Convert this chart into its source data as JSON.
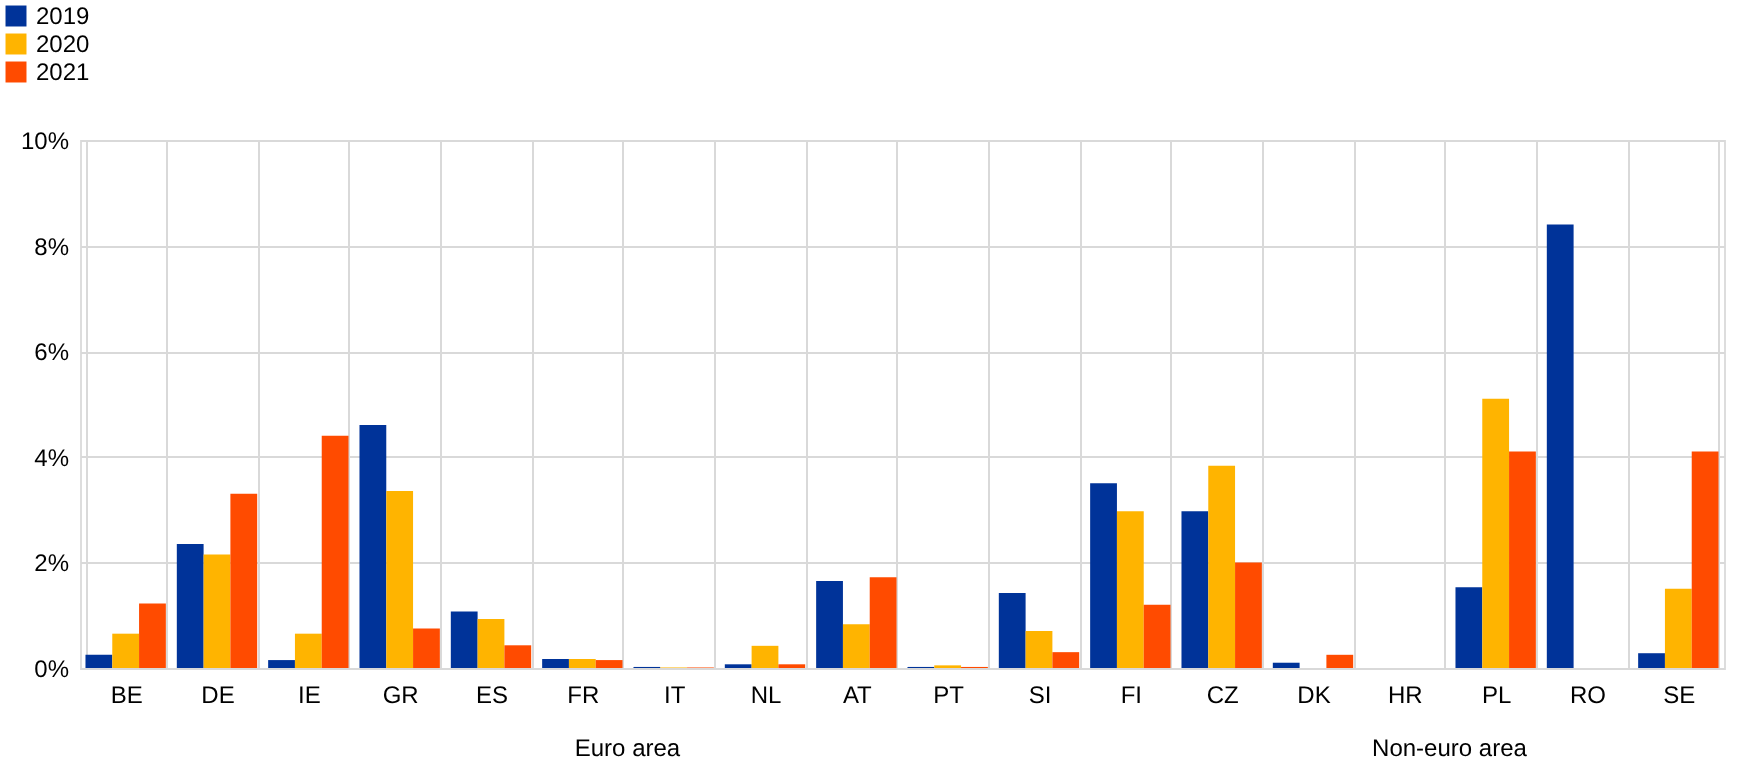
{
  "chart_data": {
    "type": "bar",
    "categories": [
      "BE",
      "DE",
      "IE",
      "GR",
      "ES",
      "FR",
      "IT",
      "NL",
      "AT",
      "PT",
      "SI",
      "FI",
      "CZ",
      "DK",
      "HR",
      "PL",
      "RO",
      "SE"
    ],
    "series": [
      {
        "name": "2019",
        "color": "#003399",
        "values": [
          0.25,
          2.35,
          0.15,
          4.6,
          1.07,
          0.17,
          0.02,
          0.07,
          1.65,
          0.02,
          1.42,
          3.5,
          2.97,
          0.1,
          0,
          1.53,
          8.4,
          0.28
        ]
      },
      {
        "name": "2020",
        "color": "#ffb400",
        "values": [
          0.65,
          2.15,
          0.65,
          3.35,
          0.93,
          0.17,
          0.01,
          0.42,
          0.83,
          0.05,
          0.7,
          2.97,
          3.83,
          0,
          0,
          5.1,
          0,
          1.5
        ]
      },
      {
        "name": "2021",
        "color": "#ff4b00",
        "values": [
          1.22,
          3.3,
          4.4,
          0.75,
          0.43,
          0.15,
          0.01,
          0.07,
          1.72,
          0.02,
          0.3,
          1.2,
          2.0,
          0.25,
          0,
          4.1,
          0,
          4.1
        ]
      }
    ],
    "ylim": [
      0,
      10
    ],
    "yticks": [
      {
        "value": 0,
        "label": "0%"
      },
      {
        "value": 2,
        "label": "2%"
      },
      {
        "value": 4,
        "label": "4%"
      },
      {
        "value": 6,
        "label": "6%"
      },
      {
        "value": 8,
        "label": "8%"
      },
      {
        "value": 10,
        "label": "10%"
      }
    ],
    "grid": true,
    "legend": "top left",
    "annotations": [
      "Euro area",
      "Non-euro area"
    ]
  }
}
